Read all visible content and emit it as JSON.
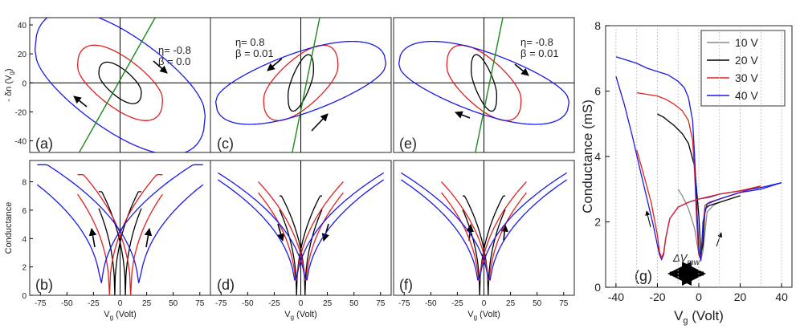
{
  "figure": {
    "panel_labels": [
      "(a)",
      "(b)",
      "(c)",
      "(d)",
      "(e)",
      "(f)",
      "(g)"
    ],
    "top_ylabel": "- δn (V",
    "top_ylabel_sub": "g",
    "top_ylabel_end": ")",
    "bottom_ylabel": "Conductance",
    "xlabel_pre": "V",
    "xlabel_sub": "g",
    "xlabel_post": " (Volt)",
    "top_yticks": [
      "40",
      "20",
      "0",
      "-20",
      "-40"
    ],
    "bottom_yticks": [
      "8",
      "6",
      "4",
      "2",
      "0"
    ],
    "bottom_xticks": [
      "-75",
      "-50",
      "-25",
      "0",
      "25",
      "50",
      "75"
    ],
    "params": [
      {
        "eta": "η= -0.8",
        "beta": "β = 0.0"
      },
      {
        "eta": "η= 0.8",
        "beta": "β = 0.01"
      },
      {
        "eta": "η= -0.8",
        "beta": "β = 0.01"
      }
    ],
    "g_ylabel": "Conductance (mS)",
    "g_yticks": [
      "8",
      "6",
      "4",
      "2",
      "0"
    ],
    "g_xticks": [
      "-40",
      "-20",
      "0",
      "20",
      "40"
    ],
    "g_xlabel_pre": "V",
    "g_xlabel_sub": "g",
    "g_xlabel_post": " (Volt)",
    "g_annotation_pre": "ΔV",
    "g_annotation_sub": "mw",
    "g_legend": [
      "10 V",
      "20 V",
      "30 V",
      "40 V"
    ]
  },
  "colors": {
    "black": "#000000",
    "red": "#e02020",
    "blue": "#1a1ae6",
    "green": "#1a8a1a",
    "gray": "#888888",
    "grid": "#bbbbbb"
  },
  "chart_data": [
    {
      "type": "line",
      "panel": "(a)",
      "title": "η= -0.8, β = 0.0",
      "xlim": [
        -85,
        85
      ],
      "ylim": [
        -48,
        45
      ],
      "ylabel": "- δn (Vg)",
      "series": [
        {
          "name": "loop 20 V",
          "color": "black",
          "kind": "loop",
          "shape": "nw",
          "amp": 20,
          "half_height": 11
        },
        {
          "name": "loop 40 V",
          "color": "red",
          "kind": "loop",
          "shape": "nw",
          "amp": 40,
          "half_height": 20
        },
        {
          "name": "loop 80 V",
          "color": "blue",
          "kind": "loop",
          "shape": "nw",
          "amp": 80,
          "half_height": 38
        },
        {
          "name": "reference line",
          "color": "green",
          "kind": "line",
          "x": [
            -40,
            33
          ],
          "y": [
            -50,
            45
          ]
        }
      ]
    },
    {
      "type": "line",
      "panel": "(b)",
      "xlim": [
        -85,
        85
      ],
      "ylim": [
        0,
        9.5
      ],
      "xlabel": "Vg (Volt)",
      "ylabel": "Conductance",
      "series": [
        {
          "name": "20 V",
          "color": "black",
          "kind": "dips",
          "offset": 5,
          "xmax": 20,
          "top": 7.3
        },
        {
          "name": "40 V",
          "color": "red",
          "kind": "dips",
          "offset": 10,
          "xmax": 40,
          "top": 8.5
        },
        {
          "name": "80 V",
          "color": "blue",
          "kind": "dips",
          "offset": 18,
          "xmax": 78,
          "top": 9.2
        }
      ]
    },
    {
      "type": "line",
      "panel": "(c)",
      "title": "η= 0.8, β = 0.01",
      "xlim": [
        -85,
        85
      ],
      "ylim": [
        -48,
        45
      ],
      "series": [
        {
          "name": "loop 20 V",
          "color": "black",
          "kind": "loop",
          "shape": "ne",
          "amp": 12,
          "half_height": 15
        },
        {
          "name": "loop 40 V",
          "color": "red",
          "kind": "loop",
          "shape": "ne",
          "amp": 35,
          "half_height": 20
        },
        {
          "name": "loop 80 V",
          "color": "blue",
          "kind": "loop",
          "shape": "ne",
          "amp": 80,
          "half_height": 22
        },
        {
          "name": "reference line",
          "color": "green",
          "kind": "line",
          "x": [
            -10,
            20
          ],
          "y": [
            -55,
            53
          ]
        }
      ]
    },
    {
      "type": "line",
      "panel": "(d)",
      "xlim": [
        -85,
        85
      ],
      "ylim": [
        0,
        9.5
      ],
      "xlabel": "Vg (Volt)",
      "series": [
        {
          "name": "20 V",
          "color": "black",
          "kind": "dips",
          "offset": 4,
          "xmax": 20,
          "top": 7.0
        },
        {
          "name": "40 V",
          "color": "red",
          "kind": "dips",
          "offset": 4.5,
          "xmax": 40,
          "top": 8.0
        },
        {
          "name": "80 V",
          "color": "blue",
          "kind": "dips",
          "offset": 5,
          "xmax": 78,
          "top": 8.8
        }
      ]
    },
    {
      "type": "line",
      "panel": "(e)",
      "title": "η= -0.8, β = 0.01",
      "xlim": [
        -85,
        85
      ],
      "ylim": [
        -48,
        45
      ],
      "series": [
        {
          "name": "loop 20 V",
          "color": "black",
          "kind": "loop",
          "shape": "nw",
          "amp": 12,
          "half_height": 15
        },
        {
          "name": "loop 40 V",
          "color": "red",
          "kind": "loop",
          "shape": "nw",
          "amp": 35,
          "half_height": 20
        },
        {
          "name": "loop 80 V",
          "color": "blue",
          "kind": "loop",
          "shape": "nw",
          "amp": 80,
          "half_height": 22
        },
        {
          "name": "reference line",
          "color": "green",
          "kind": "line",
          "x": [
            -10,
            20
          ],
          "y": [
            -55,
            53
          ]
        }
      ]
    },
    {
      "type": "line",
      "panel": "(f)",
      "xlim": [
        -85,
        85
      ],
      "ylim": [
        0,
        9.5
      ],
      "xlabel": "Vg (Volt)",
      "series": [
        {
          "name": "20 V",
          "color": "black",
          "kind": "dips",
          "offset": 4,
          "xmax": 20,
          "top": 7.0
        },
        {
          "name": "40 V",
          "color": "red",
          "kind": "dips",
          "offset": 4.5,
          "xmax": 40,
          "top": 8.0
        },
        {
          "name": "80 V",
          "color": "blue",
          "kind": "dips",
          "offset": 5,
          "xmax": 78,
          "top": 8.8
        }
      ]
    },
    {
      "type": "line",
      "panel": "(g)",
      "xlim": [
        -45,
        45
      ],
      "ylim": [
        0,
        8
      ],
      "xlabel": "Vg (Volt)",
      "ylabel": "Conductance (mS)",
      "grid": "vertical dotted",
      "legend": "top-right",
      "series": [
        {
          "name": "10 V",
          "color": "gray",
          "x": [
            -10,
            -8,
            -5,
            -2,
            0,
            1,
            2,
            4,
            7,
            10
          ],
          "y": [
            3.0,
            2.8,
            2.4,
            1.8,
            1.0,
            0.85,
            1.1,
            2.3,
            2.5,
            2.6
          ]
        },
        {
          "name": "20 V",
          "color": "black",
          "x": [
            -20,
            -17,
            -14,
            -12,
            -8,
            -5,
            -2,
            0,
            1,
            2,
            3,
            5,
            10,
            20
          ],
          "y": [
            5.3,
            5.2,
            5.05,
            4.95,
            4.7,
            4.4,
            3.7,
            2.2,
            1.0,
            1.3,
            2.4,
            2.5,
            2.6,
            2.8
          ]
        },
        {
          "name": "30 V",
          "color": "red",
          "x": [
            -30,
            -25,
            -20,
            -16,
            -12,
            -8,
            -5,
            -3,
            -2,
            -1,
            0,
            1,
            2,
            3,
            5,
            10,
            20,
            30
          ],
          "y": [
            5.95,
            5.9,
            5.85,
            5.75,
            5.6,
            5.4,
            5.1,
            4.5,
            3.5,
            2.0,
            1.0,
            0.85,
            1.8,
            2.5,
            2.6,
            2.7,
            2.9,
            3.1
          ]
        },
        {
          "name": "40 V",
          "color": "blue",
          "x": [
            -40,
            -35,
            -30,
            -25,
            -20,
            -15,
            -10,
            -7,
            -5,
            -3,
            -2,
            -1,
            0,
            1,
            2,
            4,
            10,
            20,
            30,
            40
          ],
          "y": [
            7.05,
            6.95,
            6.85,
            6.7,
            6.6,
            6.5,
            6.3,
            6.1,
            5.8,
            5.1,
            4.0,
            2.5,
            1.2,
            0.8,
            2.0,
            2.55,
            2.7,
            2.9,
            3.0,
            3.2
          ]
        },
        {
          "name": "40 V sweep down",
          "color": "blue",
          "x": [
            -40,
            -36,
            -32,
            -28,
            -25,
            -22,
            -20,
            -19,
            -18,
            -17,
            -16,
            -14,
            -10,
            -5,
            0,
            5,
            10,
            20,
            30,
            40
          ],
          "y": [
            6.45,
            5.6,
            4.6,
            3.5,
            2.7,
            1.9,
            1.3,
            1.0,
            0.85,
            1.0,
            1.5,
            2.1,
            2.45,
            2.6,
            2.7,
            2.75,
            2.85,
            2.95,
            3.05,
            3.2
          ]
        },
        {
          "name": "30 V sweep down",
          "color": "red",
          "x": [
            -30,
            -26,
            -23,
            -20,
            -19,
            -18,
            -17,
            -16,
            -14,
            -10,
            -5,
            0,
            10,
            20,
            30
          ],
          "y": [
            4.2,
            3.3,
            2.6,
            1.6,
            1.1,
            0.9,
            1.05,
            1.5,
            2.1,
            2.45,
            2.6,
            2.7,
            2.85,
            2.95,
            3.1
          ]
        }
      ]
    }
  ]
}
